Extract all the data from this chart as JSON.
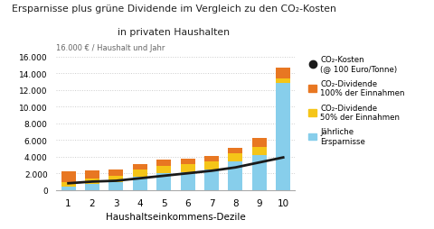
{
  "title_line1": "Ersparnisse plus grüne Dividende im Vergleich zu den CO₂-Kosten",
  "title_line2": "in privaten Haushalten",
  "xlabel": "Haushaltseinkommens-Dezile",
  "ylabel": "16.000 € / Haushalt und Jahr",
  "categories": [
    1,
    2,
    3,
    4,
    5,
    6,
    7,
    8,
    9,
    10
  ],
  "jaehrliche_ersparnisse": [
    400,
    700,
    950,
    1600,
    2000,
    2100,
    2400,
    3400,
    4200,
    12800
  ],
  "dividende_50": [
    550,
    700,
    750,
    800,
    900,
    950,
    1000,
    950,
    1000,
    600
  ],
  "dividende_100": [
    1300,
    900,
    700,
    700,
    750,
    700,
    700,
    700,
    1000,
    1300
  ],
  "co2_kosten": [
    800,
    1000,
    1100,
    1400,
    1700,
    2000,
    2300,
    2700,
    3300,
    3900
  ],
  "color_ersparnisse": "#87CEEB",
  "color_dividende_50": "#F5C518",
  "color_dividende_100": "#E87722",
  "color_co2": "#1a1a1a",
  "ylim": [
    0,
    16000
  ],
  "yticks": [
    0,
    2000,
    4000,
    6000,
    8000,
    10000,
    12000,
    14000,
    16000
  ],
  "legend_co2": "CO₂-Kosten\n(@ 100 Euro/Tonne)",
  "legend_div100": "CO₂-Dividende\n100% der Einnahmen",
  "legend_div50": "CO₂-Dividende\n50% der Einnahmen",
  "legend_ersparnisse": "Jährliche\nErsparnisse",
  "bg_color": "#ffffff"
}
